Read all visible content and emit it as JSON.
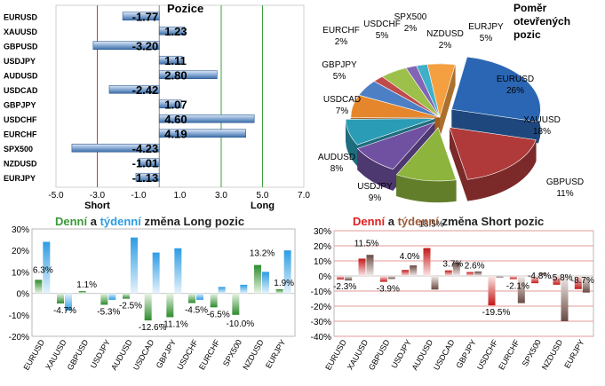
{
  "chart_data": [
    {
      "type": "bar",
      "orientation": "horizontal",
      "title": "Pozice",
      "categories": [
        "EURUSD",
        "XAUUSD",
        "GBPUSD",
        "USDJPY",
        "AUDUSD",
        "USDCAD",
        "GBPJPY",
        "USDCHF",
        "EURCHF",
        "SPX500",
        "NZDUSD",
        "EURJPY"
      ],
      "values": [
        -1.77,
        1.23,
        -3.2,
        1.11,
        2.8,
        -2.42,
        1.07,
        4.6,
        4.19,
        -4.23,
        -1.01,
        -1.13
      ],
      "value_labels": [
        "-1.77",
        "1.23",
        "-3.20",
        "1.11",
        "2.80",
        "-2.42",
        "1.07",
        "4.60",
        "4.19",
        "-4.23",
        "-1.01",
        "-1.13"
      ],
      "xlim": [
        -5.0,
        7.0
      ],
      "xticks": [
        "-5.0",
        "-3.0",
        "-1.0",
        "1.0",
        "3.0",
        "5.0",
        "7.0"
      ],
      "reference_lines": [
        {
          "value": -3,
          "label": "Short",
          "color": "#e03030"
        },
        {
          "value": 3,
          "color": "#3aa03a"
        },
        {
          "value": 5,
          "label": "Long",
          "color": "#3aa03a"
        }
      ]
    },
    {
      "type": "pie",
      "title": "Poměr otevřených pozic",
      "slices": [
        {
          "label": "EURUSD",
          "value": 26,
          "text": "26%",
          "color": "#2a66b3"
        },
        {
          "label": "XAUUSD",
          "value": 18,
          "text": "18%",
          "color": "#b03a3a"
        },
        {
          "label": "GBPUSD",
          "value": 11,
          "text": "11%",
          "color": "#8db43c"
        },
        {
          "label": "USDJPY",
          "value": 9,
          "text": "9%",
          "color": "#7050a0"
        },
        {
          "label": "AUDUSD",
          "value": 8,
          "text": "8%",
          "color": "#2b9cb5"
        },
        {
          "label": "USDCAD",
          "value": 7,
          "text": "7%",
          "color": "#e6862c"
        },
        {
          "label": "GBPJPY",
          "value": 5,
          "text": "5%",
          "color": "#4d7fc5"
        },
        {
          "label": "EURCHF",
          "value": 2,
          "text": "2%",
          "color": "#c04a4a"
        },
        {
          "label": "USDCHF",
          "value": 5,
          "text": "5%",
          "color": "#9cc04a"
        },
        {
          "label": "SPX500",
          "value": 2,
          "text": "2%",
          "color": "#8266b5"
        },
        {
          "label": "NZDUSD",
          "value": 2,
          "text": "2%",
          "color": "#3fb0c8"
        },
        {
          "label": "EURJPY",
          "value": 5,
          "text": "5%",
          "color": "#f5a040"
        }
      ]
    },
    {
      "type": "bar",
      "title_parts": [
        "Denní",
        " a ",
        "týdenní",
        " změna Long pozic"
      ],
      "categories": [
        "EURUSD",
        "XAUUSD",
        "GBPUSD",
        "USDJPY",
        "AUDUSD",
        "USDCAD",
        "GBPJPY",
        "USDCHF",
        "EURCHF",
        "SPX500",
        "NZDUSD",
        "EURJPY"
      ],
      "series": [
        {
          "name": "Denní",
          "values": [
            6.3,
            -4.7,
            1.1,
            -5.3,
            -2.5,
            -12.6,
            -11.1,
            -4.5,
            -6.5,
            -10.0,
            13.2,
            1.9
          ],
          "color": "#3a9a3a"
        },
        {
          "name": "týdenní",
          "values": [
            24,
            -8,
            0,
            -3,
            26,
            19,
            21,
            -3,
            3,
            4,
            10,
            20
          ],
          "color": "#2d9ce3"
        }
      ],
      "data_labels": [
        "6.3%",
        "-4.7%",
        "1.1%",
        "-5.3%",
        "-2.5%",
        "-12.6%",
        "-11.1%",
        "-4.5%",
        "-6.5%",
        "-10.0%",
        "13.2%",
        "1.9%"
      ],
      "ylim": [
        -20,
        30
      ],
      "yticks": [
        "30%",
        "20%",
        "10%",
        "0%",
        "-10%",
        "-20%"
      ]
    },
    {
      "type": "bar",
      "title_parts": [
        "Denní",
        " a ",
        "týdenní",
        " změna Short pozic"
      ],
      "categories": [
        "EURUSD",
        "XAUUSD",
        "GBPUSD",
        "USDJPY",
        "AUDUSD",
        "USDCAD",
        "GBPJPY",
        "USDCHF",
        "EURCHF",
        "SPX500",
        "NZDUSD",
        "EURJPY"
      ],
      "series": [
        {
          "name": "Denní",
          "values": [
            -2.3,
            11.5,
            -3.9,
            4.0,
            18.5,
            3.7,
            2.6,
            -19.5,
            -2.1,
            -4.8,
            -5.8,
            -8.7
          ],
          "color": "#cc2020"
        },
        {
          "name": "týdenní",
          "values": [
            -3,
            14,
            -2,
            7,
            -9,
            9,
            3,
            -1,
            -18,
            2,
            -30,
            -11
          ],
          "color": "#8a6a60"
        }
      ],
      "data_labels": [
        "-2.3%",
        "11.5%",
        "-3.9%",
        "4.0%",
        "18.5%",
        "3.7%",
        "2.6%",
        "-19.5%",
        "-2.1%",
        "-4.8%",
        "-5.8%",
        "-8.7%"
      ],
      "ylim": [
        -40,
        30
      ],
      "yticks": [
        "30%",
        "20%",
        "10%",
        "0%",
        "-10%",
        "-20%",
        "-30%",
        "-40%"
      ]
    }
  ]
}
